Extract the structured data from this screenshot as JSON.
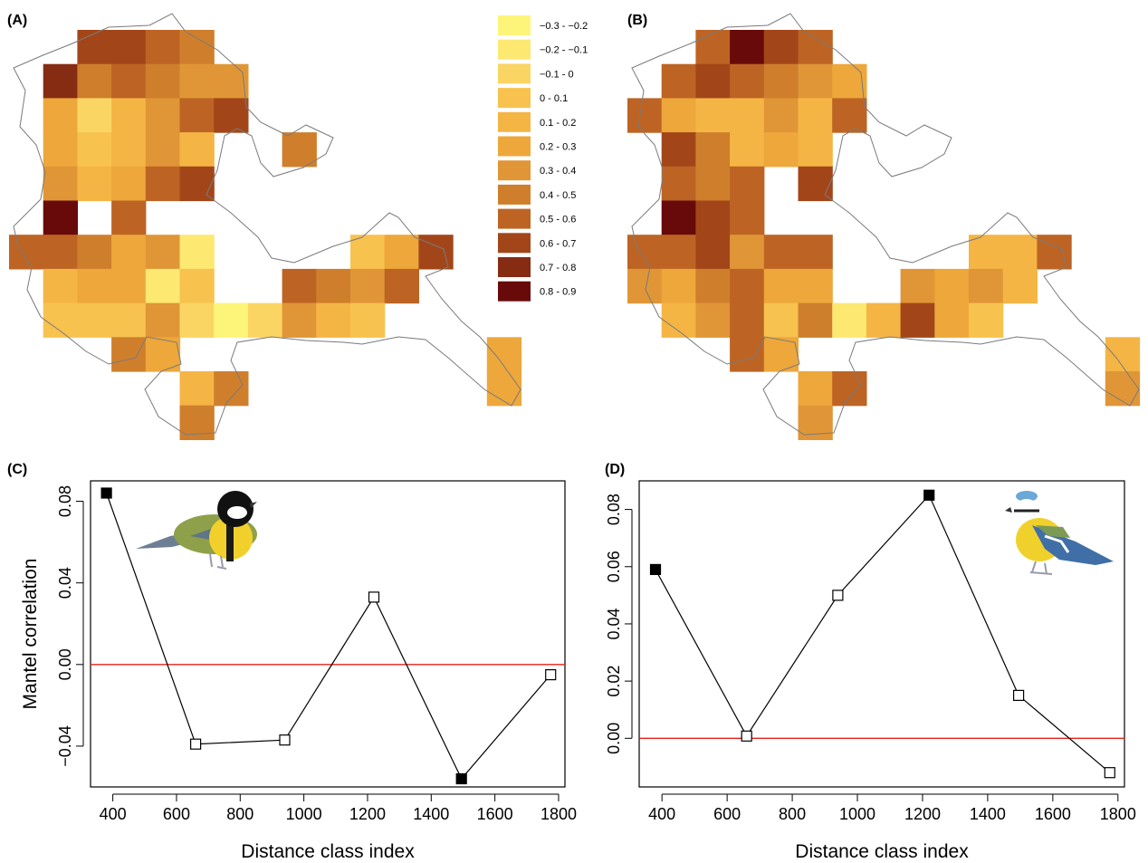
{
  "panels": {
    "a": {
      "label": "(A)"
    },
    "b": {
      "label": "(B)"
    },
    "c": {
      "label": "(C)"
    },
    "d": {
      "label": "(D)"
    }
  },
  "legend": {
    "entries": [
      {
        "label": "−0.3 - −0.2",
        "color": "#fdf57a"
      },
      {
        "label": "−0.2 - −0.1",
        "color": "#fde872"
      },
      {
        "label": "−0.1 - 0",
        "color": "#fbd563"
      },
      {
        "label": "0 - 0.1",
        "color": "#f8c24f"
      },
      {
        "label": "0.1 - 0.2",
        "color": "#f4b545"
      },
      {
        "label": "0.2 - 0.3",
        "color": "#eda73b"
      },
      {
        "label": "0.3 - 0.4",
        "color": "#e09636"
      },
      {
        "label": "0.4 - 0.5",
        "color": "#cf7f2c"
      },
      {
        "label": "0.5 - 0.6",
        "color": "#bd6424"
      },
      {
        "label": "0.6 - 0.7",
        "color": "#a2461a"
      },
      {
        "label": "0.7 - 0.8",
        "color": "#852c13"
      },
      {
        "label": "0.8 - 0.9",
        "color": "#690a0a"
      }
    ]
  },
  "icons": {
    "great_tit": "bird-icon",
    "blue_tit": "bird-icon"
  },
  "maps": {
    "a": {
      "x0": 10,
      "y0": 33,
      "cell": 37.7,
      "cells": [
        [
          2,
          0,
          9
        ],
        [
          3,
          0,
          9
        ],
        [
          4,
          0,
          8
        ],
        [
          5,
          0,
          7
        ],
        [
          1,
          1,
          10
        ],
        [
          2,
          1,
          7
        ],
        [
          3,
          1,
          8
        ],
        [
          4,
          1,
          7
        ],
        [
          5,
          1,
          6
        ],
        [
          6,
          1,
          6
        ],
        [
          1,
          2,
          5
        ],
        [
          2,
          2,
          2
        ],
        [
          3,
          2,
          4
        ],
        [
          4,
          2,
          6
        ],
        [
          5,
          2,
          8
        ],
        [
          6,
          2,
          9
        ],
        [
          1,
          3,
          5
        ],
        [
          2,
          3,
          3
        ],
        [
          3,
          3,
          4
        ],
        [
          4,
          3,
          6
        ],
        [
          5,
          3,
          4
        ],
        [
          8,
          3,
          7
        ],
        [
          1,
          4,
          6
        ],
        [
          2,
          4,
          4
        ],
        [
          3,
          4,
          5
        ],
        [
          4,
          4,
          8
        ],
        [
          5,
          4,
          9
        ],
        [
          1,
          5,
          11
        ],
        [
          3,
          5,
          8
        ],
        [
          0,
          6,
          8
        ],
        [
          1,
          6,
          8
        ],
        [
          2,
          6,
          7
        ],
        [
          3,
          6,
          5
        ],
        [
          4,
          6,
          6
        ],
        [
          5,
          6,
          1
        ],
        [
          10,
          6,
          3
        ],
        [
          11,
          6,
          5
        ],
        [
          12,
          6,
          9
        ],
        [
          1,
          7,
          4
        ],
        [
          2,
          7,
          5
        ],
        [
          3,
          7,
          5
        ],
        [
          4,
          7,
          1
        ],
        [
          5,
          7,
          3
        ],
        [
          8,
          7,
          8
        ],
        [
          9,
          7,
          7
        ],
        [
          10,
          7,
          6
        ],
        [
          11,
          7,
          8
        ],
        [
          1,
          8,
          3
        ],
        [
          2,
          8,
          3
        ],
        [
          3,
          8,
          3
        ],
        [
          4,
          8,
          6
        ],
        [
          5,
          8,
          2
        ],
        [
          6,
          8,
          0
        ],
        [
          7,
          8,
          2
        ],
        [
          8,
          8,
          6
        ],
        [
          9,
          8,
          4
        ],
        [
          10,
          8,
          3
        ],
        [
          3,
          9,
          7
        ],
        [
          4,
          9,
          5
        ],
        [
          14,
          9,
          5
        ],
        [
          5,
          10,
          4
        ],
        [
          6,
          10,
          7
        ],
        [
          14,
          10,
          5
        ],
        [
          5,
          11,
          7
        ]
      ]
    },
    "b": {
      "x0": 693,
      "y0": 33,
      "cell": 37.7,
      "cells": [
        [
          2,
          0,
          8
        ],
        [
          3,
          0,
          11
        ],
        [
          4,
          0,
          9
        ],
        [
          5,
          0,
          8
        ],
        [
          1,
          1,
          8
        ],
        [
          2,
          1,
          9
        ],
        [
          3,
          1,
          8
        ],
        [
          4,
          1,
          7
        ],
        [
          5,
          1,
          6
        ],
        [
          6,
          1,
          5
        ],
        [
          0,
          2,
          8
        ],
        [
          1,
          2,
          5
        ],
        [
          2,
          2,
          4
        ],
        [
          3,
          2,
          4
        ],
        [
          4,
          2,
          6
        ],
        [
          5,
          2,
          4
        ],
        [
          6,
          2,
          8
        ],
        [
          1,
          3,
          9
        ],
        [
          2,
          3,
          7
        ],
        [
          3,
          3,
          4
        ],
        [
          4,
          3,
          5
        ],
        [
          5,
          3,
          4
        ],
        [
          1,
          4,
          8
        ],
        [
          2,
          4,
          7
        ],
        [
          3,
          4,
          8
        ],
        [
          5,
          4,
          9
        ],
        [
          1,
          5,
          11
        ],
        [
          2,
          5,
          9
        ],
        [
          3,
          5,
          8
        ],
        [
          0,
          6,
          8
        ],
        [
          1,
          6,
          8
        ],
        [
          2,
          6,
          9
        ],
        [
          3,
          6,
          6
        ],
        [
          4,
          6,
          8
        ],
        [
          5,
          6,
          8
        ],
        [
          10,
          6,
          4
        ],
        [
          11,
          6,
          4
        ],
        [
          12,
          6,
          8
        ],
        [
          0,
          7,
          6
        ],
        [
          1,
          7,
          5
        ],
        [
          2,
          7,
          7
        ],
        [
          3,
          7,
          8
        ],
        [
          4,
          7,
          5
        ],
        [
          5,
          7,
          5
        ],
        [
          8,
          7,
          6
        ],
        [
          9,
          7,
          5
        ],
        [
          10,
          7,
          6
        ],
        [
          11,
          7,
          4
        ],
        [
          1,
          8,
          4
        ],
        [
          2,
          8,
          6
        ],
        [
          3,
          8,
          8
        ],
        [
          4,
          8,
          3
        ],
        [
          5,
          8,
          7
        ],
        [
          6,
          8,
          1
        ],
        [
          7,
          8,
          4
        ],
        [
          8,
          8,
          9
        ],
        [
          9,
          8,
          5
        ],
        [
          10,
          8,
          3
        ],
        [
          3,
          9,
          8
        ],
        [
          4,
          9,
          5
        ],
        [
          14,
          9,
          4
        ],
        [
          5,
          10,
          5
        ],
        [
          6,
          10,
          8
        ],
        [
          14,
          10,
          6
        ],
        [
          5,
          11,
          6
        ]
      ]
    }
  },
  "chart_data": [
    {
      "type": "line",
      "panel": "(C)",
      "xlabel": "Distance class index",
      "ylabel": "Mantel correlation",
      "xlim": [
        330,
        1820
      ],
      "ylim": [
        -0.06,
        0.09
      ],
      "xticks": [
        400,
        600,
        800,
        1000,
        1200,
        1400,
        1600,
        1800
      ],
      "yticks": [
        0.08,
        0.04,
        0.0,
        -0.04
      ],
      "yticklabels": [
        "0.08",
        "0.04",
        "0.00",
        "−0.04"
      ],
      "reference_line": {
        "y": 0,
        "color": "#e3221b"
      },
      "series": [
        {
          "x": [
            380,
            660,
            940,
            1220,
            1495,
            1775
          ],
          "y": [
            0.084,
            -0.039,
            -0.037,
            0.033,
            -0.056,
            -0.005
          ],
          "significant": [
            true,
            false,
            false,
            false,
            true,
            false
          ]
        }
      ]
    },
    {
      "type": "line",
      "panel": "(D)",
      "xlabel": "Distance class index",
      "ylabel": "",
      "xlim": [
        330,
        1820
      ],
      "ylim": [
        -0.017,
        0.09
      ],
      "xticks": [
        400,
        600,
        800,
        1000,
        1200,
        1400,
        1600,
        1800
      ],
      "yticks": [
        0.08,
        0.06,
        0.04,
        0.02,
        0.0
      ],
      "yticklabels": [
        "0.08",
        "0.06",
        "0.04",
        "0.02",
        "0.00"
      ],
      "reference_line": {
        "y": 0,
        "color": "#e3221b"
      },
      "series": [
        {
          "x": [
            380,
            660,
            940,
            1220,
            1495,
            1775
          ],
          "y": [
            0.059,
            0.0008,
            0.05,
            0.085,
            0.015,
            -0.012
          ],
          "significant": [
            true,
            false,
            false,
            true,
            false,
            false
          ]
        }
      ]
    }
  ]
}
